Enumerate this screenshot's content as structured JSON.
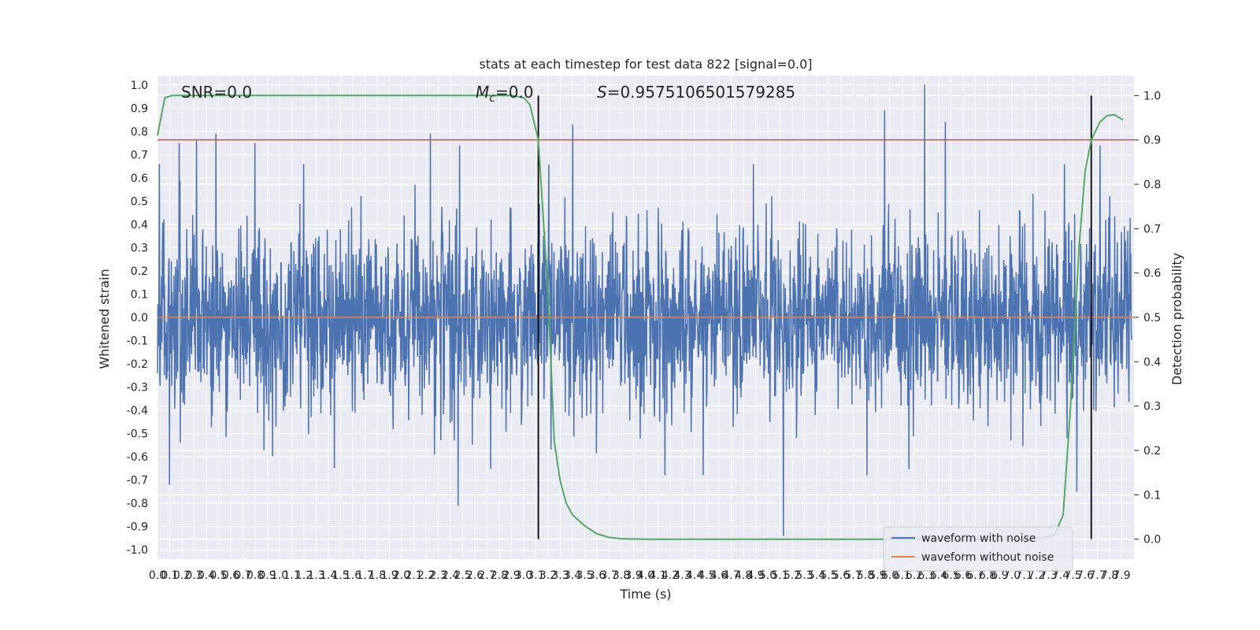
{
  "chart_data": {
    "type": "line",
    "title": "stats at each timestep for test data 822 [signal=0.0]",
    "xlabel": "Time (s)",
    "ylabel": "Whitened strain",
    "y2label": "Detection probability",
    "xlim": [
      0.0,
      8.0
    ],
    "ylim": [
      -1.04,
      1.04
    ],
    "y2lim": [
      -0.045,
      1.045
    ],
    "grid": true,
    "legend_position": "lower-right",
    "x_ticks": [
      "0.0",
      "0.1",
      "0.2",
      "0.3",
      "0.4",
      "0.5",
      "0.6",
      "0.7",
      "0.8",
      "0.9",
      "1.0",
      "1.1",
      "1.2",
      "1.3",
      "1.4",
      "1.5",
      "1.6",
      "1.7",
      "1.8",
      "1.9",
      "2.0",
      "2.1",
      "2.2",
      "2.3",
      "2.4",
      "2.5",
      "2.6",
      "2.7",
      "2.8",
      "2.9",
      "3.0",
      "3.1",
      "3.2",
      "3.3",
      "3.4",
      "3.5",
      "3.6",
      "3.7",
      "3.8",
      "3.9",
      "4.0",
      "4.1",
      "4.2",
      "4.3",
      "4.4",
      "4.5",
      "4.6",
      "4.7",
      "4.8",
      "4.9",
      "5.0",
      "5.1",
      "5.2",
      "5.3",
      "5.4",
      "5.5",
      "5.6",
      "5.7",
      "5.8",
      "5.9",
      "6.0",
      "6.1",
      "6.2",
      "6.3",
      "6.4",
      "6.5",
      "6.6",
      "6.7",
      "6.8",
      "6.9",
      "7.0",
      "7.1",
      "7.2",
      "7.3",
      "7.4",
      "7.5",
      "7.6",
      "7.7",
      "7.8",
      "7.9"
    ],
    "y_ticks": [
      "1.0",
      "0.9",
      "0.8",
      "0.7",
      "0.6",
      "0.5",
      "0.4",
      "0.3",
      "0.2",
      "0.1",
      "0.0",
      "-0.1",
      "-0.2",
      "-0.3",
      "-0.4",
      "-0.5",
      "-0.6",
      "-0.7",
      "-0.8",
      "-0.9",
      "-1.0"
    ],
    "y2_ticks": [
      "1.0",
      "0.9",
      "0.8",
      "0.7",
      "0.6",
      "0.5",
      "0.4",
      "0.3",
      "0.2",
      "0.1",
      "0.0"
    ],
    "annotations": {
      "snr": "SNR=0.0",
      "mc_symbol": "M",
      "mc_sub": "c",
      "mc_value": "=0.0",
      "s_symbol": "S",
      "s_value": "=0.9575106501579285"
    },
    "threshold": 0.9,
    "vertical_lines_x": [
      3.12,
      7.65
    ],
    "series": [
      {
        "name": "waveform with noise",
        "color": "#4c72b0",
        "description_level": "noise amplitude envelope roughly -0.5 to 0.6 with spikes; values listed are notable peaks",
        "peaks": [
          [
            0.1,
            -0.72
          ],
          [
            0.18,
            0.75
          ],
          [
            0.32,
            0.76
          ],
          [
            0.48,
            0.79
          ],
          [
            0.8,
            0.75
          ],
          [
            2.24,
            0.79
          ],
          [
            2.47,
            -0.81
          ],
          [
            2.48,
            0.74
          ],
          [
            3.41,
            0.83
          ],
          [
            5.14,
            -0.94
          ],
          [
            5.97,
            0.89
          ],
          [
            6.3,
            1.0
          ],
          [
            6.47,
            0.84
          ],
          [
            7.55,
            -0.75
          ],
          [
            7.74,
            0.74
          ]
        ]
      },
      {
        "name": "waveform without noise",
        "color": "#dd8452",
        "value": 0.0
      },
      {
        "name": "detection probability",
        "color": "#55a868",
        "axis": "y2",
        "x": [
          0.0,
          0.06,
          0.12,
          0.2,
          0.5,
          1.0,
          1.5,
          2.0,
          2.5,
          2.8,
          2.9,
          2.95,
          3.0,
          3.05,
          3.12,
          3.2,
          3.25,
          3.3,
          3.35,
          3.4,
          3.5,
          3.6,
          3.7,
          3.8,
          4.0,
          4.5,
          5.0,
          5.5,
          6.0,
          6.5,
          6.9,
          7.1,
          7.2,
          7.3,
          7.35,
          7.42,
          7.48,
          7.55,
          7.6,
          7.65,
          7.72,
          7.78,
          7.84,
          7.91
        ],
        "y": [
          0.91,
          0.995,
          1.0,
          1.0,
          1.0,
          1.0,
          1.0,
          1.0,
          1.0,
          1.0,
          1.0,
          0.998,
          0.995,
          0.98,
          0.9,
          0.55,
          0.22,
          0.13,
          0.08,
          0.055,
          0.03,
          0.012,
          0.004,
          0.001,
          0.0,
          0.0,
          0.0,
          0.0,
          0.0,
          0.0,
          0.0,
          0.0,
          0.001,
          0.005,
          0.01,
          0.055,
          0.3,
          0.66,
          0.83,
          0.9,
          0.94,
          0.955,
          0.957,
          0.945
        ]
      }
    ],
    "threshold_color": "#c44e52",
    "vline_color": "#000000",
    "plot_bg": "#eaeaf2",
    "grid_color": "#ffffff",
    "legend": [
      {
        "label": "waveform with noise",
        "color": "#4c72b0"
      },
      {
        "label": "waveform without noise",
        "color": "#dd8452"
      }
    ]
  }
}
